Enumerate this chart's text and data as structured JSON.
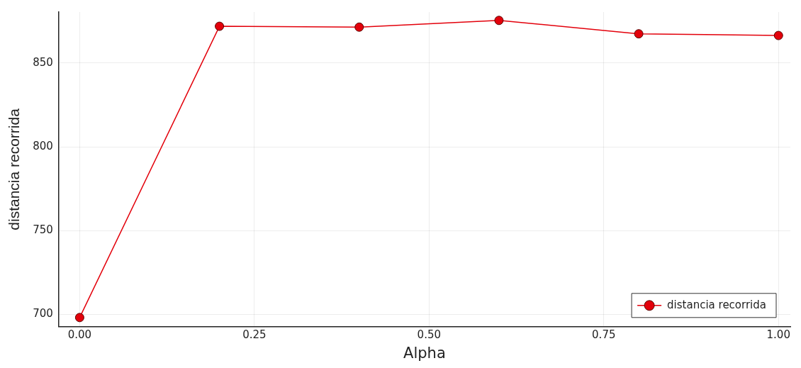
{
  "chart_data": {
    "type": "line",
    "xlabel": "Alpha",
    "ylabel": "distancia recorrida",
    "x": [
      0,
      0.2,
      0.4,
      0.6,
      0.8,
      1.0
    ],
    "series": [
      {
        "name": "distancia recorrida",
        "color": "#e3000b",
        "values": [
          698,
          872,
          871.5,
          875.5,
          867.5,
          866.5
        ]
      }
    ],
    "xlim": [
      -0.03,
      1.017
    ],
    "ylim": [
      692.5,
      880.5
    ],
    "xticks": [
      {
        "value": 0,
        "label": "0.00"
      },
      {
        "value": 0.25,
        "label": "0.25"
      },
      {
        "value": 0.5,
        "label": "0.50"
      },
      {
        "value": 0.75,
        "label": "0.75"
      },
      {
        "value": 1,
        "label": "1.00"
      }
    ],
    "yticks": [
      700,
      750,
      800,
      850
    ],
    "grid": true,
    "legend": "bottom right",
    "marker": "circle",
    "line_style": "solid"
  }
}
